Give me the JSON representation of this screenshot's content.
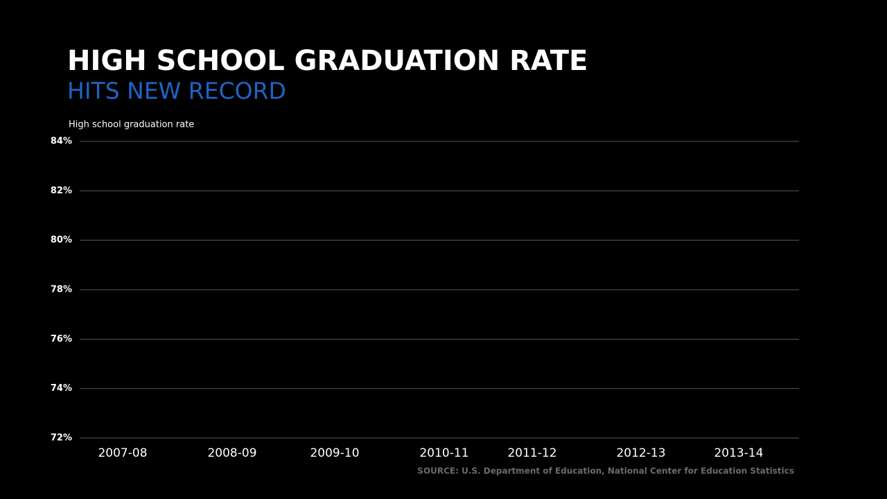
{
  "chart_data": {
    "type": "line",
    "title": "HIGH SCHOOL GRADUATION RATE",
    "subtitle": "HITS NEW RECORD",
    "y_label": "High school graduation rate",
    "source": "SOURCE: U.S. Department of Education, National Center for Education Statistics",
    "categories": [
      "2007-08",
      "2008-09",
      "2009-10",
      "2010-11",
      "2011-12",
      "2012-13",
      "2013-14"
    ],
    "ylim": [
      72,
      84
    ],
    "yticks": [
      {
        "value": 72,
        "label": "72%"
      },
      {
        "value": 74,
        "label": "74%"
      },
      {
        "value": 76,
        "label": "76%"
      },
      {
        "value": 78,
        "label": "78%"
      },
      {
        "value": 80,
        "label": "80%"
      },
      {
        "value": 82,
        "label": "82%"
      },
      {
        "value": 84,
        "label": "84%"
      }
    ],
    "grid": true,
    "subtitle_color": "#1f63c6"
  }
}
